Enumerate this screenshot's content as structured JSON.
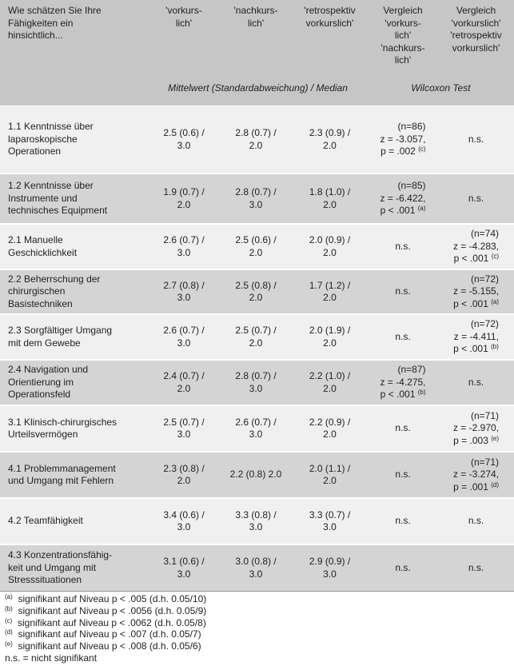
{
  "header": {
    "columns": [
      [
        "Wie schätzen Sie Ihre",
        "Fähigkeiten ein",
        "hinsichtlich..."
      ],
      [
        "'vorkurs-",
        "lich'"
      ],
      [
        "'nachkurs-",
        "lich'"
      ],
      [
        "'retrospektiv",
        "vorkurslich'"
      ],
      [
        "Vergleich",
        "'vorkurs-",
        "lich'",
        "'nachkurs-",
        "lich'"
      ],
      [
        "Vergleich",
        "'vorkurslich'",
        "'retrospektiv",
        "vorkurslich'"
      ]
    ],
    "group_labels": [
      "Mittelwert (Standardabweichung) / Median",
      "Wilcoxon Test"
    ]
  },
  "table": {
    "rows": [
      [
        [
          "1.1 Kenntnisse über",
          "laparoskopische",
          "Operationen"
        ],
        [
          "2.5 (0.6) /",
          "3.0"
        ],
        [
          "2.8 (0.7) /",
          "2.0"
        ],
        [
          "2.3 (0.9) /",
          "2.0"
        ],
        {
          "lines": [
            "(n=86)",
            "z = -3.057,",
            "p = .002"
          ],
          "note": "(c)"
        },
        "n.s."
      ],
      [
        [
          "1.2 Kenntnisse über",
          "Instrumente und",
          "technisches Equipment"
        ],
        [
          "1.9 (0.7) /",
          "2.0"
        ],
        [
          "2.8 (0.7) /",
          "3.0"
        ],
        [
          "1.8 (1.0) /",
          "2.0"
        ],
        {
          "lines": [
            "(n=85)",
            "z = -6.422,",
            "p < .001"
          ],
          "note": "(a)"
        },
        "n.s."
      ],
      [
        [
          "2.1 Manuelle",
          "Geschicklichkeit"
        ],
        [
          "2.6 (0.7) /",
          "3.0"
        ],
        [
          "2.5 (0.6) /",
          "2.0"
        ],
        [
          "2.0 (0.9) /",
          "2.0"
        ],
        "n.s.",
        {
          "lines": [
            "(n=74)",
            "z = -4.283,",
            "p < .001"
          ],
          "note": "(c)"
        }
      ],
      [
        [
          "2.2 Beherrschung der",
          "chirurgischen",
          "Basistechniken"
        ],
        [
          "2.7 (0.8) /",
          "3.0"
        ],
        [
          "2.5 (0.8) /",
          "2.0"
        ],
        [
          "1.7 (1.2) /",
          "2.0"
        ],
        "n.s.",
        {
          "lines": [
            "(n=72)",
            "z = -5.155,",
            "p < .001"
          ],
          "note": "(a)"
        }
      ],
      [
        [
          "2.3 Sorgfältiger Umgang",
          "mit dem Gewebe"
        ],
        [
          "2.6 (0.7) /",
          "3.0"
        ],
        [
          "2.5 (0.7) /",
          "2.0"
        ],
        [
          "2.0 (1.9) /",
          "2.0"
        ],
        "n.s.",
        {
          "lines": [
            "(n=72)",
            "z = -4.411,",
            "p < .001"
          ],
          "note": "(b)"
        }
      ],
      [
        [
          "2.4 Navigation und",
          "Orientierung im",
          "Operationsfeld"
        ],
        [
          "2.4 (0.7) /",
          "2.0"
        ],
        [
          "2.8 (0.7) /",
          "3.0"
        ],
        [
          "2.2 (1.0) /",
          "2.0"
        ],
        {
          "lines": [
            "(n=87)",
            "z = -4.275,",
            "p < .001"
          ],
          "note": "(b)"
        },
        "n.s."
      ],
      [
        [
          "3.1 Klinisch-chirurgisches",
          "Urteilsvermögen"
        ],
        [
          "2.5 (0.7) /",
          "3.0"
        ],
        [
          "2.6 (0.7) /",
          "3.0"
        ],
        [
          "2.2 (0.9) /",
          "2.0"
        ],
        "n.s.",
        {
          "lines": [
            "(n=71)",
            "z = -2.970,",
            "p = .003"
          ],
          "note": "(e)"
        }
      ],
      [
        [
          "4.1 Problemmanagement",
          "und Umgang mit Fehlern"
        ],
        [
          "2.3 (0.8) /",
          "2.0"
        ],
        [
          "2.2 (0.8) 2.0"
        ],
        [
          "2.0 (1.1) /",
          "2.0"
        ],
        "n.s.",
        {
          "lines": [
            "(n=71)",
            "z = -3.274,",
            "p = .001"
          ],
          "note": "(d)"
        }
      ],
      [
        [
          "4.2 Teamfähigkeit"
        ],
        [
          "3.4 (0.6) /",
          "3.0"
        ],
        [
          "3.3 (0.8) /",
          "3.0"
        ],
        [
          "3.3 (0.7) /",
          "3.0"
        ],
        "n.s.",
        "n.s."
      ],
      [
        [
          "4.3 Konzentrationsfähig-",
          "keit und Umgang mit",
          "Stresssituationen"
        ],
        [
          "3.1 (0.6) /",
          "3.0"
        ],
        [
          "3.0 (0.8) /",
          "3.0"
        ],
        [
          "2.9 (0.9) /",
          "3.0"
        ],
        "n.s.",
        "n.s."
      ]
    ]
  },
  "footnotes": [
    {
      "mark": "(a)",
      "text": "signifikant auf Niveau p < .005 (d.h. 0.05/10)"
    },
    {
      "mark": "(b)",
      "text": "signifikant auf Niveau p < .0056 (d.h. 0.05/9)"
    },
    {
      "mark": "(c)",
      "text": "signifikant auf Niveau p < .0062 (d.h. 0.05/8)"
    },
    {
      "mark": "(d)",
      "text": "signifikant auf Niveau p < .007 (d.h. 0.05/7)"
    },
    {
      "mark": "(e)",
      "text": "signifikant auf Niveau p < .008 (d.h. 0.05/6)"
    },
    {
      "text": "n.s. = nicht signifikant"
    }
  ]
}
